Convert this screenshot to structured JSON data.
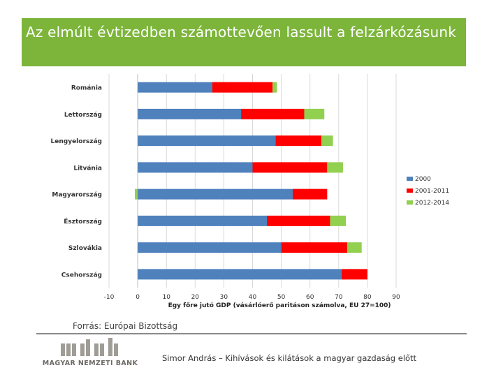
{
  "slide": {
    "title": "Az elmúlt évtizedben számottevően lassult a felzárkózásunk",
    "source": "Forrás: Európai Bizottság",
    "footer": "Simor András – Kihívások és kilátások a magyar gazdaság előtt",
    "logo_text": "MAGYAR NEMZETI BANK"
  },
  "colors": {
    "title_bg": "#7cb53a",
    "series_2000": "#4f81bd",
    "series_2001_2011": "#ff0000",
    "series_2012_2014": "#92d050"
  },
  "chart_data": {
    "type": "bar",
    "orientation": "horizontal",
    "stacked": true,
    "title": "",
    "xlabel": "Egy főre jutó GDP (vásárlóerő paritáson számolva, EU 27=100)",
    "ylabel": "",
    "xlim": [
      -10,
      90
    ],
    "xticks": [
      -10,
      0,
      10,
      20,
      30,
      40,
      50,
      60,
      70,
      80,
      90
    ],
    "grid": true,
    "legend_position": "right",
    "categories": [
      "Románia",
      "Lettország",
      "Lengyelország",
      "Litvánia",
      "Magyarország",
      "Észtország",
      "Szlovákia",
      "Csehország"
    ],
    "series": [
      {
        "name": "2000",
        "color": "#4f81bd",
        "values": [
          26,
          36,
          48,
          40,
          54,
          45,
          50,
          71
        ]
      },
      {
        "name": "2001-2011",
        "color": "#ff0000",
        "values": [
          21,
          22,
          16,
          26,
          12,
          22,
          23,
          9
        ]
      },
      {
        "name": "2012-2014",
        "color": "#92d050",
        "values": [
          1.5,
          7,
          4,
          5.5,
          -1,
          5.5,
          5,
          0
        ]
      }
    ]
  }
}
